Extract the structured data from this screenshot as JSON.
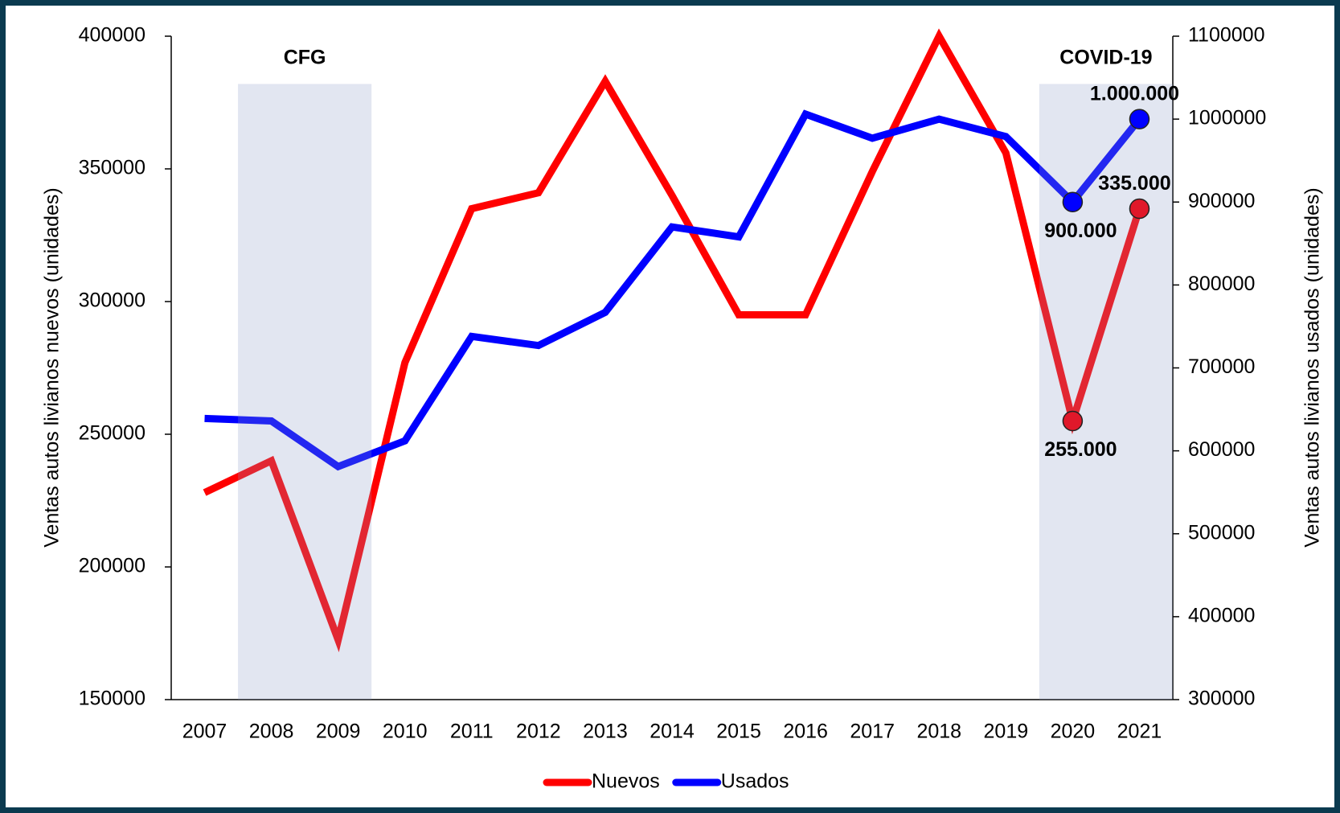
{
  "chart_data": {
    "type": "line",
    "categories": [
      "2007",
      "2008",
      "2009",
      "2010",
      "2011",
      "2012",
      "2013",
      "2014",
      "2015",
      "2016",
      "2017",
      "2018",
      "2019",
      "2020",
      "2021"
    ],
    "y_label": "Ventas autos livianos nuevos (unidades)",
    "y2_label": "Ventas autos livianos usados (unidades)",
    "ylim": [
      150000,
      400000
    ],
    "yticks": [
      150000,
      200000,
      250000,
      300000,
      350000,
      400000
    ],
    "y2lim": [
      300000,
      1100000
    ],
    "y2ticks": [
      300000,
      400000,
      500000,
      600000,
      700000,
      800000,
      900000,
      1000000,
      1100000
    ],
    "legend": "bottom",
    "shaded_periods": [
      {
        "label": "CFG",
        "from": "2008",
        "to": "2009"
      },
      {
        "label": "COVID-19",
        "from": "2020",
        "to": "2021"
      }
    ],
    "series": [
      {
        "name": "Nuevos",
        "color": "#ff0000",
        "values": [
          228000,
          240000,
          172500,
          277000,
          335000,
          341000,
          383000,
          340000,
          295000,
          295000,
          349000,
          400000,
          356000,
          255000,
          335000
        ],
        "value_labels": [
          null,
          null,
          null,
          null,
          null,
          null,
          null,
          null,
          null,
          null,
          null,
          null,
          null,
          "255.000",
          "335.000"
        ]
      },
      {
        "name": "Usados",
        "color": "#0000ff",
        "axis": "y2",
        "values": [
          639000,
          636000,
          581000,
          612000,
          738000,
          727000,
          767000,
          870000,
          858000,
          1006000,
          977000,
          1000000,
          979000,
          900000,
          1000000
        ],
        "value_labels": [
          null,
          null,
          null,
          null,
          null,
          null,
          null,
          null,
          null,
          null,
          null,
          null,
          null,
          "900.000",
          "1.000.000"
        ]
      }
    ]
  }
}
